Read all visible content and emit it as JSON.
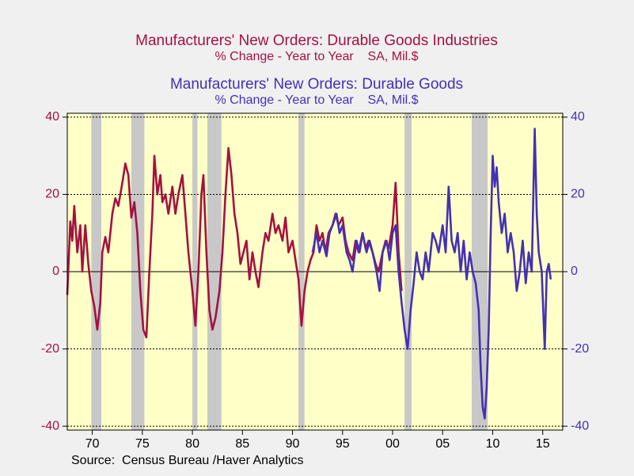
{
  "chart_data": {
    "type": "line",
    "source": "Source:  Census Bureau /Haver Analytics",
    "xlim": [
      1967.5,
      2017
    ],
    "xticks": [
      {
        "value": 1970,
        "label": "70"
      },
      {
        "value": 1975,
        "label": "75"
      },
      {
        "value": 1980,
        "label": "80"
      },
      {
        "value": 1985,
        "label": "85"
      },
      {
        "value": 1990,
        "label": "90"
      },
      {
        "value": 1995,
        "label": "95"
      },
      {
        "value": 2000,
        "label": "00"
      },
      {
        "value": 2005,
        "label": "05"
      },
      {
        "value": 2010,
        "label": "10"
      },
      {
        "value": 2015,
        "label": "15"
      }
    ],
    "ylim": [
      -41,
      41
    ],
    "yticks": [
      -40,
      -20,
      0,
      20,
      40
    ],
    "y2lim": [
      -41,
      41
    ],
    "y2ticks": [
      -40,
      -20,
      0,
      20,
      40
    ],
    "grid": true,
    "recessions": [
      [
        1969.9,
        1970.9
      ],
      [
        1973.9,
        1975.2
      ],
      [
        1980.0,
        1980.5
      ],
      [
        1981.5,
        1982.9
      ],
      [
        1990.6,
        1991.2
      ],
      [
        2001.2,
        2001.9
      ],
      [
        2007.9,
        2009.5
      ]
    ],
    "series": [
      {
        "name": "Manufacturers' New Orders: Durable Goods Industries",
        "units": "% Change - Year to Year    SA, Mil.$",
        "color": "#a3123f",
        "axis": "y",
        "x": [
          1967.5,
          1967.8,
          1968.0,
          1968.2,
          1968.5,
          1968.8,
          1969.0,
          1969.3,
          1969.6,
          1969.9,
          1970.2,
          1970.5,
          1970.8,
          1971.0,
          1971.3,
          1971.6,
          1972.0,
          1972.3,
          1972.6,
          1973.0,
          1973.3,
          1973.6,
          1973.9,
          1974.2,
          1974.5,
          1974.8,
          1975.1,
          1975.4,
          1975.7,
          1976.0,
          1976.2,
          1976.5,
          1976.8,
          1977.0,
          1977.3,
          1977.6,
          1978.0,
          1978.3,
          1978.6,
          1979.0,
          1979.3,
          1979.6,
          1980.0,
          1980.3,
          1980.6,
          1980.9,
          1981.1,
          1981.4,
          1981.7,
          1982.0,
          1982.3,
          1982.7,
          1983.0,
          1983.3,
          1983.6,
          1983.9,
          1984.2,
          1984.5,
          1984.8,
          1985.1,
          1985.4,
          1985.7,
          1986.0,
          1986.3,
          1986.6,
          1987.0,
          1987.3,
          1987.6,
          1988.0,
          1988.3,
          1988.6,
          1989.0,
          1989.3,
          1989.6,
          1990.0,
          1990.3,
          1990.6,
          1990.9,
          1991.2,
          1991.5,
          1991.8,
          1992.1,
          1992.4,
          1992.7,
          1993.0,
          1993.3,
          1993.6,
          1994.0,
          1994.3,
          1994.6,
          1995.0,
          1995.3,
          1995.6,
          1996.0,
          1996.3,
          1996.6,
          1997.0,
          1997.3,
          1997.6,
          1998.0,
          1998.3,
          1998.6,
          1999.0,
          1999.3,
          1999.6,
          2000.0,
          2000.3,
          2000.6,
          2000.9
        ],
        "values": [
          -6,
          13,
          8,
          17,
          5,
          12,
          0,
          12,
          2,
          -5,
          -9,
          -15,
          -8,
          5,
          9,
          5,
          15,
          19,
          17,
          23,
          28,
          25,
          14,
          18,
          10,
          -5,
          -15,
          -17,
          0,
          15,
          30,
          20,
          25,
          18,
          20,
          15,
          22,
          15,
          20,
          25,
          15,
          5,
          -5,
          -14,
          0,
          20,
          25,
          5,
          -10,
          -15,
          -12,
          -5,
          5,
          20,
          32,
          25,
          15,
          10,
          2,
          5,
          8,
          -2,
          5,
          0,
          -4,
          5,
          10,
          8,
          15,
          10,
          12,
          8,
          14,
          5,
          8,
          3,
          -2,
          -14,
          -5,
          0,
          3,
          5,
          12,
          8,
          10,
          5,
          10,
          12,
          15,
          12,
          14,
          8,
          5,
          3,
          8,
          5,
          10,
          6,
          8,
          5,
          2,
          0,
          5,
          8,
          6,
          12,
          23,
          5,
          -5
        ]
      },
      {
        "name": "Manufacturers' New Orders: Durable Goods",
        "units": "% Change - Year to Year    SA, Mil.$",
        "color": "#4430b4",
        "axis": "y2",
        "x": [
          1992.0,
          1992.4,
          1992.7,
          1993.0,
          1993.4,
          1993.7,
          1994.0,
          1994.4,
          1994.7,
          1995.0,
          1995.4,
          1995.7,
          1996.0,
          1996.4,
          1996.7,
          1997.0,
          1997.4,
          1997.7,
          1998.0,
          1998.4,
          1998.7,
          1999.0,
          1999.4,
          1999.7,
          2000.0,
          2000.3,
          2000.6,
          2000.9,
          2001.2,
          2001.5,
          2001.8,
          2002.1,
          2002.4,
          2002.7,
          2003.0,
          2003.3,
          2003.6,
          2004.0,
          2004.3,
          2004.6,
          2005.0,
          2005.3,
          2005.6,
          2005.9,
          2006.2,
          2006.5,
          2006.8,
          2007.1,
          2007.4,
          2007.7,
          2008.0,
          2008.3,
          2008.6,
          2008.8,
          2009.0,
          2009.2,
          2009.4,
          2009.6,
          2009.8,
          2010.0,
          2010.2,
          2010.4,
          2010.6,
          2010.9,
          2011.2,
          2011.5,
          2011.8,
          2012.1,
          2012.4,
          2012.7,
          2013.0,
          2013.3,
          2013.6,
          2013.9,
          2014.2,
          2014.4,
          2014.6,
          2014.9,
          2015.2,
          2015.4,
          2015.6,
          2015.8
        ],
        "values": [
          5,
          10,
          5,
          8,
          4,
          10,
          12,
          15,
          10,
          12,
          5,
          3,
          0,
          8,
          5,
          10,
          5,
          8,
          5,
          0,
          -5,
          5,
          8,
          3,
          10,
          12,
          0,
          -8,
          -15,
          -20,
          -10,
          -3,
          5,
          0,
          -2,
          5,
          0,
          10,
          8,
          5,
          12,
          5,
          22,
          8,
          5,
          10,
          0,
          8,
          -2,
          5,
          0,
          -3,
          -10,
          -25,
          -35,
          -38,
          -30,
          -15,
          10,
          30,
          22,
          27,
          18,
          10,
          15,
          5,
          10,
          5,
          -5,
          0,
          8,
          -3,
          5,
          0,
          37,
          15,
          5,
          0,
          -20,
          0,
          2,
          -2
        ]
      }
    ]
  }
}
